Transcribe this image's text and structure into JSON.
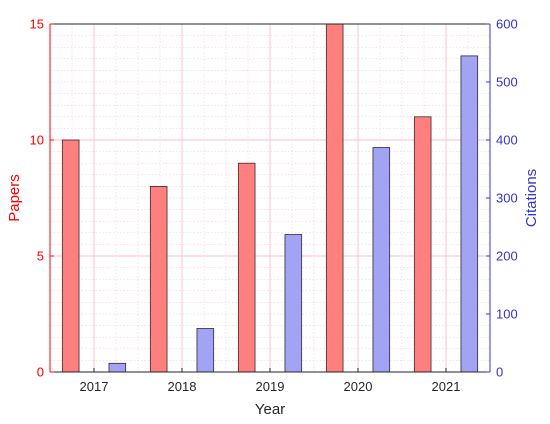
{
  "chart_data": {
    "type": "bar",
    "title": "",
    "xlabel": "Year",
    "categories": [
      "2017",
      "2018",
      "2019",
      "2020",
      "2021"
    ],
    "series": [
      {
        "name": "Papers",
        "axis": "left",
        "values": [
          10,
          8,
          9,
          15,
          11
        ],
        "color": "#ff7f7f"
      },
      {
        "name": "Citations",
        "axis": "right",
        "values": [
          15,
          75,
          237,
          387,
          545
        ],
        "color": "#a3a3f5"
      }
    ],
    "y_left": {
      "label": "Papers",
      "range": [
        0,
        15
      ],
      "ticks": [
        "0",
        "5",
        "10",
        "15"
      ],
      "color": "#ff0000"
    },
    "y_right": {
      "label": "Citations",
      "range": [
        0,
        600
      ],
      "ticks": [
        "0",
        "100",
        "200",
        "300",
        "400",
        "500",
        "600"
      ],
      "color": "#3333cc"
    },
    "grid": true,
    "grid_color": "#f3c0d4"
  }
}
